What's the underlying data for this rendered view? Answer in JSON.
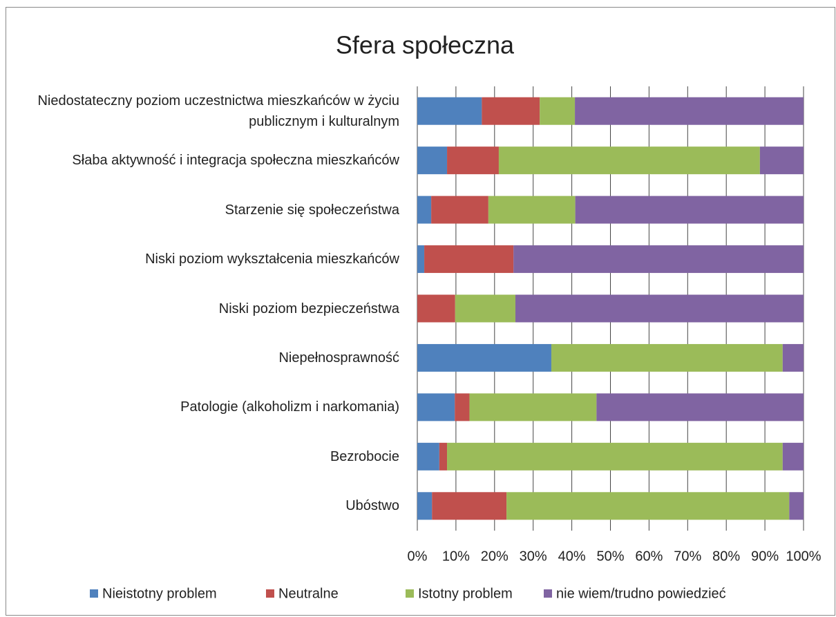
{
  "chart_data": {
    "type": "stacked_bar_horizontal",
    "title": "Sfera społeczna",
    "categories": [
      "Niedostateczny poziom uczestnictwa mieszkańców w życiu publicznym i kulturalnym",
      "Słaba aktywność i integracja społeczna mieszkańców",
      "Starzenie się społeczeństwa",
      "Niski poziom wykształcenia mieszkańców",
      "Niski poziom bezpieczeństwa",
      "Niepełnosprawność",
      "Patologie (alkoholizm i narkomania)",
      "Bezrobocie",
      "Ubóstwo"
    ],
    "series": [
      {
        "name": "Nieistotny problem",
        "color": "#4f81bd",
        "values": [
          16.7,
          7.7,
          3.6,
          1.8,
          0,
          34.7,
          9.7,
          5.7,
          3.8
        ]
      },
      {
        "name": "Neutralne",
        "color": "#c0504d",
        "values": [
          15.0,
          13.4,
          14.8,
          23.1,
          9.8,
          0,
          3.8,
          2.0,
          19.3
        ]
      },
      {
        "name": "Istotny problem",
        "color": "#9bbb59",
        "values": [
          9.1,
          67.6,
          22.5,
          0,
          15.6,
          59.9,
          32.9,
          86.9,
          73.2
        ]
      },
      {
        "name": "nie wiem/trudno powiedzieć",
        "color": "#8064a2",
        "values": [
          59.2,
          11.3,
          59.1,
          75.1,
          74.6,
          5.4,
          53.6,
          5.4,
          3.7
        ]
      }
    ],
    "xlim": [
      0,
      100
    ],
    "xticks": [
      {
        "value": 0,
        "label": "0%"
      },
      {
        "value": 10,
        "label": "10%"
      },
      {
        "value": 20,
        "label": "20%"
      },
      {
        "value": 30,
        "label": "30%"
      },
      {
        "value": 40,
        "label": "40%"
      },
      {
        "value": 50,
        "label": "50%"
      },
      {
        "value": 60,
        "label": "60%"
      },
      {
        "value": 70,
        "label": "70%"
      },
      {
        "value": 80,
        "label": "80%"
      },
      {
        "value": 90,
        "label": "90%"
      },
      {
        "value": 100,
        "label": "100%"
      }
    ],
    "grid": true,
    "legend": "bottom"
  }
}
